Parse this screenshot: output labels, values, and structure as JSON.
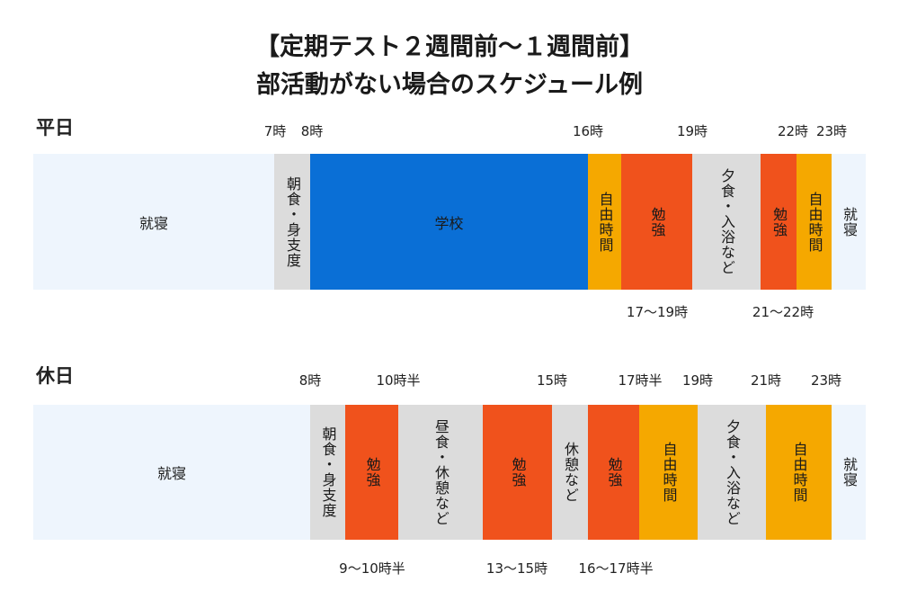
{
  "title": {
    "line1": "【定期テスト２週間前〜１週間前】",
    "line2": "部活動がない場合のスケジュール例"
  },
  "colors": {
    "sleep": "#eef5fd",
    "routine": "#dcdcdc",
    "school": "#0a6fd6",
    "free": "#f5a800",
    "study": "#f0521c"
  },
  "weekday": {
    "label": "平日",
    "times_top": [
      "7時",
      "8時",
      "16時",
      "19時",
      "22時",
      "23時"
    ],
    "segments": [
      "就寝",
      "朝食・身支度",
      "学校",
      "自由時間",
      "勉強",
      "夕食・入浴など",
      "勉強",
      "自由時間",
      "就寝"
    ],
    "times_bottom": [
      "17〜19時",
      "21〜22時"
    ]
  },
  "holiday": {
    "label": "休日",
    "times_top": [
      "8時",
      "10時半",
      "15時",
      "17時半",
      "19時",
      "21時",
      "23時"
    ],
    "segments": [
      "就寝",
      "朝食・身支度",
      "勉強",
      "昼食・休憩など",
      "勉強",
      "休憩など",
      "勉強",
      "自由時間",
      "夕食・入浴など",
      "自由時間",
      "就寝"
    ],
    "times_bottom": [
      "9〜10時半",
      "13〜15時",
      "16〜17時半"
    ]
  }
}
